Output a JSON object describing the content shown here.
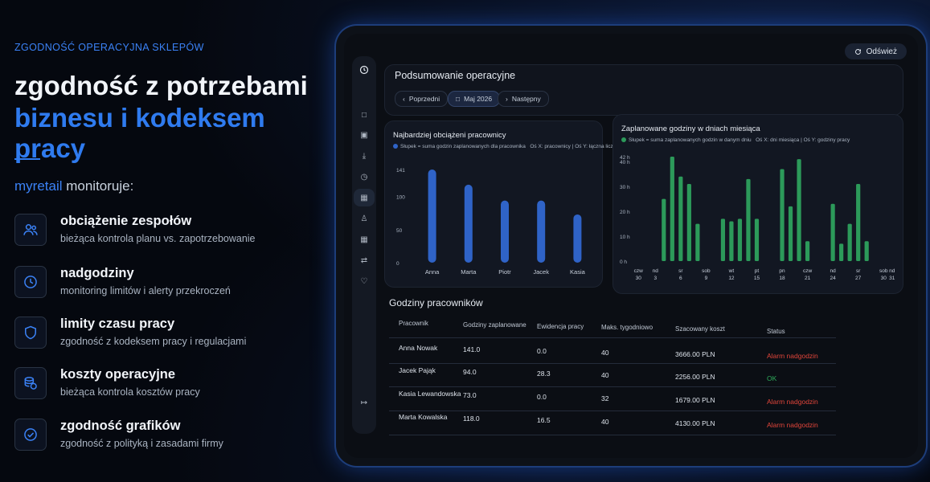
{
  "left": {
    "kicker": "ZGODNOŚĆ OPERACYJNA SKLEPÓW",
    "headline_1": "zgodność z potrzebami",
    "headline_2": "biznesu i kodeksem pracy",
    "brand": "myretail",
    "monitor_suffix": " monitoruje:",
    "features": [
      {
        "icon": "team-icon",
        "title": "obciążenie zespołów",
        "desc": "bieżąca kontrola planu vs. zapotrzebowanie"
      },
      {
        "icon": "clock-icon",
        "title": "nadgodziny",
        "desc": "monitoring limitów i alerty przekroczeń"
      },
      {
        "icon": "shield-icon",
        "title": "limity czasu pracy",
        "desc": "zgodność z kodeksem pracy i regulacjami"
      },
      {
        "icon": "coins-icon",
        "title": "koszty operacyjne",
        "desc": "bieżąca kontrola kosztów pracy"
      },
      {
        "icon": "check-circle-icon",
        "title": "zgodność grafików",
        "desc": "zgodność z polityką i zasadami firmy"
      }
    ],
    "accent_color": "#2f7bef"
  },
  "app": {
    "refresh_label": "Odśwież",
    "summary_title": "Podsumowanie operacyjne",
    "prev_label": "Poprzedni",
    "month_label": "Maj 2026",
    "next_label": "Następny",
    "sidebar_icons": [
      "clock-icon",
      "calendar-icon",
      "store-icon",
      "download-icon",
      "clock-icon",
      "dashboard-icon",
      "users-icon",
      "building-icon",
      "swap-icon",
      "bell-icon",
      "logout-icon"
    ]
  },
  "chart_data": [
    {
      "type": "bar",
      "title": "Najbardziej obciążeni pracownicy",
      "legend": "Słupek = suma godzin zaplanowanych dla pracownika",
      "axis_note": "Oś X: pracownicy | Oś Y: łączna liczba godzin",
      "categories": [
        "Anna",
        "Marta",
        "Piotr",
        "Jacek",
        "Kasia"
      ],
      "values": [
        141,
        118,
        94,
        94,
        73
      ],
      "yticks": [
        "141",
        "100",
        "50",
        "0"
      ],
      "ylim": [
        0,
        141
      ],
      "color": "#2f63c7"
    },
    {
      "type": "bar",
      "title": "Zaplanowane godziny w dniach miesiąca",
      "legend": "Słupek = suma zaplanowanych godzin w danym dniu",
      "axis_note": "Oś X: dni miesiąca | Oś Y: godziny pracy",
      "days": [
        1,
        2,
        3,
        4,
        5,
        6,
        7,
        8,
        9,
        10,
        11,
        12,
        13,
        14,
        15,
        16,
        17,
        18,
        19,
        20,
        21,
        22,
        23,
        24,
        25,
        26,
        27,
        28,
        29,
        30,
        31
      ],
      "values": [
        0,
        0,
        0,
        25,
        42,
        34,
        31,
        15,
        0,
        0,
        17,
        16,
        17,
        33,
        17,
        0,
        0,
        37,
        22,
        41,
        8,
        0,
        0,
        23,
        7,
        15,
        31,
        8,
        0,
        0,
        0
      ],
      "xtick_days": [
        "czw",
        "nd",
        "sr",
        "sob",
        "wt",
        "pt",
        "pn",
        "czw",
        "nd",
        "sr",
        "sob",
        "nd"
      ],
      "xtick_nums": [
        "30",
        "3",
        "6",
        "9",
        "12",
        "15",
        "18",
        "21",
        "24",
        "27",
        "30",
        "31"
      ],
      "yticks": [
        "42 h",
        "40 h",
        "30 h",
        "20 h",
        "10 h",
        "0 h"
      ],
      "ylim": [
        0,
        42
      ],
      "color": "#2c9a5a"
    }
  ],
  "table": {
    "title": "Godziny pracowników",
    "headers": [
      "Pracownik",
      "Godziny zaplanowane",
      "Ewidencja pracy",
      "Maks. tygodniowo",
      "Szacowany koszt",
      "Status"
    ],
    "rows": [
      {
        "name": "Anna Nowak",
        "planned": "141.0",
        "recorded": "0.0",
        "max": "40",
        "cost": "3666.00 PLN",
        "status": "Alarm nadgodzin",
        "status_color": "#e0453a"
      },
      {
        "name": "Jacek Pająk",
        "planned": "94.0",
        "recorded": "28.3",
        "max": "40",
        "cost": "2256.00 PLN",
        "status": "OK",
        "status_color": "#2fae5c"
      },
      {
        "name": "Kasia Lewandowska",
        "planned": "73.0",
        "recorded": "0.0",
        "max": "32",
        "cost": "1679.00 PLN",
        "status": "Alarm nadgodzin",
        "status_color": "#e0453a"
      },
      {
        "name": "Marta Kowalska",
        "planned": "118.0",
        "recorded": "16.5",
        "max": "40",
        "cost": "4130.00 PLN",
        "status": "Alarm nadgodzin",
        "status_color": "#e0453a"
      }
    ]
  }
}
